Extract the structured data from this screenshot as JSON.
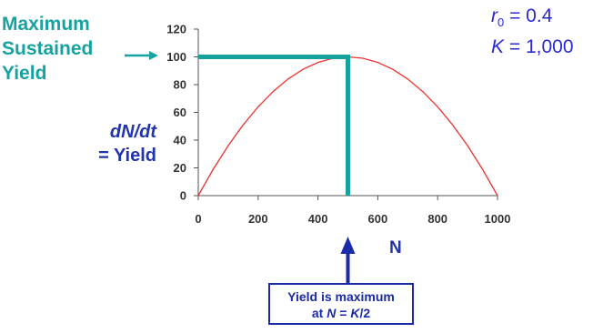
{
  "annotation_left": {
    "line1": "Maximum",
    "line2": "Sustained",
    "line3": "Yield",
    "color": "#16a3a0"
  },
  "params": {
    "r_symbol": "r",
    "r_subscript": "0",
    "r_value": "= 0.4",
    "k_symbol": "K",
    "k_value": "= 1,000",
    "color": "#2b2bd0"
  },
  "axis_labels": {
    "y_line1": "dN/dt",
    "y_line2": "= Yield",
    "x": "N"
  },
  "callout": {
    "line1": "Yield is maximum",
    "line2_prefix": "at ",
    "line2_n": "N",
    "line2_mid": " = ",
    "line2_k": "K",
    "line2_suffix": "/2"
  },
  "chart_data": {
    "type": "line",
    "x_ticks": [
      0,
      200,
      400,
      600,
      800,
      1000
    ],
    "y_ticks": [
      0,
      20,
      40,
      60,
      80,
      100,
      120
    ],
    "xlim": [
      0,
      1000
    ],
    "ylim": [
      0,
      120
    ],
    "series": [
      {
        "color": "#ee3333",
        "x": [
          0,
          50,
          100,
          150,
          200,
          250,
          300,
          350,
          400,
          450,
          500,
          550,
          600,
          650,
          700,
          750,
          800,
          850,
          900,
          950,
          1000
        ],
        "y": [
          0,
          19,
          36,
          51,
          64,
          75,
          84,
          91,
          96,
          99,
          100,
          99,
          96,
          91,
          84,
          75,
          64,
          51,
          36,
          19,
          0
        ]
      }
    ],
    "max_point": {
      "x": 500,
      "y": 100
    },
    "marker_color": "#16a3a0",
    "grid": false
  }
}
